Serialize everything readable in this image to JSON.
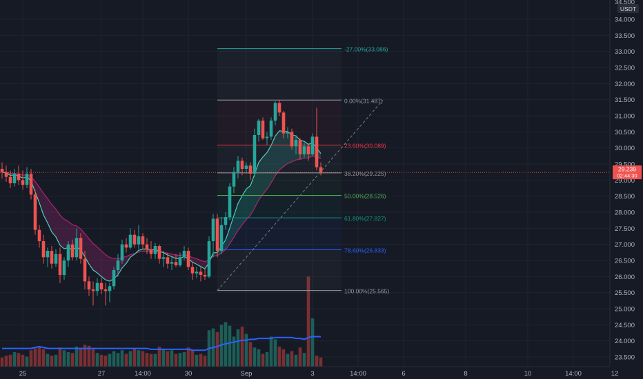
{
  "symbol": {
    "currency": "USDT"
  },
  "last_price": {
    "value": "29.239",
    "countdown": "02:44:30",
    "y": 29.239
  },
  "price_axis": {
    "min": 23.2,
    "max": 34.6,
    "ticks": [
      "34.000",
      "33.500",
      "33.000",
      "32.500",
      "32.000",
      "31.500",
      "31.000",
      "30.500",
      "30.000",
      "29.500",
      "29.000",
      "28.500",
      "28.000",
      "27.500",
      "27.000",
      "26.500",
      "26.000",
      "25.500",
      "25.000",
      "24.500",
      "24.000",
      "23.500"
    ],
    "partial_top": "34.500"
  },
  "time_axis": {
    "labels": [
      {
        "text": "25",
        "bar": 5
      },
      {
        "text": "27",
        "bar": 24
      },
      {
        "text": "14:00",
        "bar": 34
      },
      {
        "text": "30",
        "bar": 45
      },
      {
        "text": "Sep",
        "bar": 59
      },
      {
        "text": "3",
        "bar": 75
      },
      {
        "text": "14:00",
        "bar": 86
      },
      {
        "text": "6",
        "bar": 97
      },
      {
        "text": "8",
        "bar": 112
      },
      {
        "text": "10",
        "bar": 127
      },
      {
        "text": "14:00",
        "bar": 138
      },
      {
        "text": "12",
        "bar": 148
      }
    ]
  },
  "fib": {
    "start_bar": 52,
    "end_bar": 82,
    "levels": [
      {
        "label": "-27.00%(33.086)",
        "price": 33.086,
        "color": "#26a69a"
      },
      {
        "label": "0.00%(31.487)",
        "price": 31.487,
        "color": "#9598a1"
      },
      {
        "label": "23.60%(30.089)",
        "price": 30.089,
        "color": "#f23645"
      },
      {
        "label": "38.20%(29.225)",
        "price": 29.225,
        "color": "#9598a1"
      },
      {
        "label": "50.00%(28.526)",
        "price": 28.526,
        "color": "#4caf50"
      },
      {
        "label": "61.80%(27.827)",
        "price": 27.827,
        "color": "#089981"
      },
      {
        "label": "78.60%(26.833)",
        "price": 26.833,
        "color": "#2962ff"
      },
      {
        "label": "100.00%(25.565)",
        "price": 25.565,
        "color": "#9598a1"
      }
    ],
    "trend_line": {
      "from": [
        52,
        25.565
      ],
      "to": [
        92,
        31.487
      ]
    }
  },
  "colors": {
    "background": "#161a25",
    "grid": "#1f2430",
    "up": "#26a69a",
    "down": "#ef5350",
    "volume_up": "#1d5e57",
    "volume_down": "#7a2f33",
    "volume_ma": "#2962ff",
    "ma_fast_up": "#4dd0b8",
    "ma_slow": "#b2216b",
    "cloud_bull": "rgba(38,166,154,0.22)",
    "cloud_bear": "rgba(156,39,120,0.30)",
    "axis_text": "#b2b5be",
    "last_price_bg": "#ef5350"
  },
  "chart_data": {
    "type": "candlestick",
    "bar_interval": "4h",
    "ylim": [
      23.2,
      34.6
    ],
    "ohlc": [
      [
        29.35,
        29.55,
        29.05,
        29.25
      ],
      [
        29.25,
        29.45,
        28.95,
        29.1
      ],
      [
        29.1,
        29.3,
        28.75,
        28.9
      ],
      [
        28.9,
        29.35,
        28.8,
        29.2
      ],
      [
        29.2,
        29.45,
        28.85,
        29.0
      ],
      [
        29.0,
        29.3,
        28.7,
        28.85
      ],
      [
        28.85,
        29.4,
        28.75,
        29.2
      ],
      [
        29.2,
        29.35,
        28.4,
        28.55
      ],
      [
        28.55,
        28.7,
        27.3,
        27.45
      ],
      [
        27.45,
        27.6,
        26.9,
        27.1
      ],
      [
        27.1,
        27.3,
        26.4,
        26.6
      ],
      [
        26.6,
        26.9,
        26.3,
        26.8
      ],
      [
        26.8,
        26.95,
        26.25,
        26.4
      ],
      [
        26.4,
        26.85,
        26.3,
        26.7
      ],
      [
        26.7,
        26.9,
        25.8,
        26.05
      ],
      [
        26.05,
        26.6,
        25.9,
        26.5
      ],
      [
        26.5,
        27.1,
        26.3,
        27.0
      ],
      [
        27.0,
        27.15,
        26.5,
        26.6
      ],
      [
        26.6,
        27.5,
        26.5,
        27.2
      ],
      [
        27.2,
        27.35,
        26.4,
        26.55
      ],
      [
        26.55,
        26.8,
        25.6,
        25.85
      ],
      [
        25.85,
        26.0,
        25.4,
        25.6
      ],
      [
        25.6,
        25.85,
        25.1,
        25.55
      ],
      [
        25.55,
        25.95,
        25.4,
        25.8
      ],
      [
        25.8,
        25.95,
        25.45,
        25.6
      ],
      [
        25.6,
        25.8,
        25.1,
        25.55
      ],
      [
        25.55,
        25.8,
        25.2,
        25.7
      ],
      [
        25.7,
        26.3,
        25.6,
        26.2
      ],
      [
        26.2,
        26.7,
        26.0,
        26.5
      ],
      [
        26.5,
        27.15,
        26.4,
        27.0
      ],
      [
        27.0,
        27.2,
        26.75,
        26.9
      ],
      [
        26.9,
        27.5,
        26.85,
        27.3
      ],
      [
        27.3,
        27.45,
        26.9,
        27.0
      ],
      [
        27.0,
        27.6,
        26.85,
        27.25
      ],
      [
        27.25,
        27.35,
        26.85,
        27.0
      ],
      [
        27.0,
        27.2,
        26.7,
        26.85
      ],
      [
        26.85,
        27.1,
        26.55,
        26.7
      ],
      [
        26.7,
        27.05,
        26.55,
        26.95
      ],
      [
        26.95,
        27.0,
        26.4,
        26.55
      ],
      [
        26.55,
        26.8,
        26.3,
        26.6
      ],
      [
        26.6,
        26.75,
        26.25,
        26.4
      ],
      [
        26.4,
        26.6,
        26.2,
        26.45
      ],
      [
        26.45,
        26.7,
        26.3,
        26.35
      ],
      [
        26.35,
        26.75,
        26.3,
        26.6
      ],
      [
        26.6,
        26.95,
        26.5,
        26.8
      ],
      [
        26.8,
        26.9,
        26.2,
        26.3
      ],
      [
        26.3,
        26.45,
        25.9,
        26.1
      ],
      [
        26.1,
        26.3,
        25.95,
        26.15
      ],
      [
        26.15,
        26.3,
        25.85,
        26.05
      ],
      [
        26.05,
        26.25,
        25.9,
        26.0
      ],
      [
        26.0,
        27.25,
        25.95,
        27.1
      ],
      [
        27.1,
        27.95,
        26.6,
        27.8
      ],
      [
        27.8,
        27.95,
        26.6,
        26.8
      ],
      [
        26.8,
        27.85,
        26.7,
        27.6
      ],
      [
        27.6,
        28.0,
        27.45,
        27.85
      ],
      [
        27.85,
        28.9,
        27.75,
        28.8
      ],
      [
        28.8,
        29.4,
        28.6,
        29.25
      ],
      [
        29.25,
        29.75,
        29.05,
        29.6
      ],
      [
        29.6,
        29.7,
        29.15,
        29.35
      ],
      [
        29.35,
        29.55,
        29.2,
        29.45
      ],
      [
        29.45,
        29.55,
        29.0,
        29.2
      ],
      [
        29.2,
        30.6,
        29.1,
        30.4
      ],
      [
        30.4,
        30.9,
        30.2,
        30.85
      ],
      [
        30.85,
        30.95,
        30.25,
        30.3
      ],
      [
        30.3,
        30.5,
        30.1,
        30.35
      ],
      [
        30.35,
        30.95,
        30.25,
        30.85
      ],
      [
        30.85,
        31.45,
        30.7,
        31.4
      ],
      [
        31.4,
        31.5,
        31.0,
        31.1
      ],
      [
        31.1,
        31.15,
        30.3,
        30.45
      ],
      [
        30.45,
        30.65,
        30.3,
        30.5
      ],
      [
        30.5,
        30.6,
        29.95,
        30.05
      ],
      [
        30.05,
        30.4,
        29.8,
        30.25
      ],
      [
        30.25,
        30.3,
        29.65,
        29.8
      ],
      [
        29.8,
        30.15,
        29.7,
        30.05
      ],
      [
        30.05,
        30.1,
        29.6,
        29.8
      ],
      [
        29.8,
        30.45,
        29.75,
        30.35
      ],
      [
        30.35,
        31.25,
        29.3,
        29.4
      ],
      [
        29.4,
        29.55,
        29.15,
        29.24
      ]
    ],
    "volume": [
      10,
      12,
      13,
      16,
      15,
      13,
      11,
      18,
      20,
      22,
      19,
      14,
      12,
      13,
      21,
      18,
      16,
      15,
      22,
      20,
      24,
      23,
      19,
      15,
      13,
      12,
      14,
      17,
      15,
      18,
      14,
      17,
      20,
      18,
      17,
      15,
      14,
      14,
      22,
      19,
      17,
      18,
      14,
      15,
      16,
      21,
      18,
      13,
      14,
      12,
      40,
      42,
      38,
      46,
      49,
      45,
      33,
      41,
      44,
      36,
      27,
      21,
      19,
      14,
      16,
      33,
      30,
      22,
      19,
      14,
      17,
      13,
      21,
      15,
      99,
      53,
      12,
      10
    ],
    "volume_ma": [
      20,
      20,
      20,
      20,
      20,
      20,
      20,
      20,
      21,
      22,
      21,
      20,
      20,
      20,
      20,
      20,
      20,
      20,
      20,
      20,
      20,
      20,
      20,
      20,
      20,
      20,
      20,
      20,
      20,
      20,
      20,
      20,
      20,
      20,
      20,
      20,
      19,
      19,
      19,
      19,
      19,
      19,
      19,
      19,
      19,
      19,
      18,
      18,
      18,
      18,
      20,
      21,
      22,
      24,
      25,
      26,
      27,
      28,
      29,
      29,
      30,
      30,
      31,
      31,
      31,
      31,
      32,
      32,
      32,
      32,
      32,
      31,
      31,
      30,
      32,
      33,
      33,
      33
    ]
  }
}
